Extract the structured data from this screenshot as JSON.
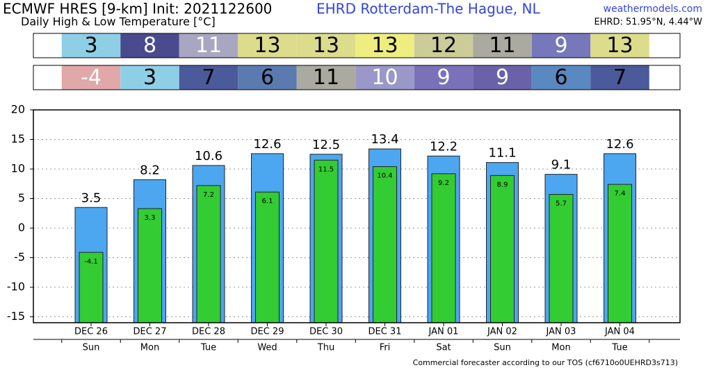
{
  "chart_data": {
    "type": "bar",
    "title": "ECMWF HRES [9-km] Init: 2021122600",
    "location": "EHRD Rotterdam-The Hague,  NL",
    "site": "weathermodels.com",
    "subtitle": "Daily High & Low Temperature [°C]",
    "coords": "EHRD: 51.95°N, 4.44°W",
    "footer": "Commercial forecaster according to our TOS (cf6710o0UEHRD3s713)",
    "categories": [
      "DEC 26",
      "DEC 27",
      "DEC 28",
      "DEC 29",
      "DEC 30",
      "DEC 31",
      "JAN 01",
      "JAN 02",
      "JAN 03",
      "JAN 04"
    ],
    "weekdays": [
      "Sun",
      "Mon",
      "Tue",
      "Wed",
      "Thu",
      "Fri",
      "Sat",
      "Sun",
      "Mon",
      "Tue"
    ],
    "series": [
      {
        "color": "#4da6f0",
        "values": [
          3.5,
          8.2,
          10.6,
          12.6,
          12.5,
          13.4,
          12.2,
          11.1,
          9.1,
          12.6
        ]
      },
      {
        "color": "#33cc33",
        "values": [
          -4.1,
          3.3,
          7.2,
          6.1,
          11.5,
          10.4,
          9.2,
          8.9,
          5.7,
          7.4
        ]
      }
    ],
    "summary_rows": [
      {
        "values": [
          3,
          8,
          11,
          13,
          13,
          13,
          12,
          11,
          9,
          13
        ],
        "colors": [
          "#8ecfe6",
          "#4a4a8f",
          "#a8a6c0",
          "#dcdc8c",
          "#dcdc8c",
          "#eeee80",
          "#cccc99",
          "#aaaaa0",
          "#7777bb",
          "#dcdc8c"
        ],
        "text_colors": [
          "#000",
          "#fff",
          "#fff",
          "#000",
          "#000",
          "#000",
          "#000",
          "#000",
          "#fff",
          "#000"
        ]
      },
      {
        "values": [
          -4,
          3,
          7,
          6,
          11,
          10,
          9,
          9,
          6,
          7
        ],
        "colors": [
          "#e0a8a8",
          "#8ecfe6",
          "#4a5a9a",
          "#5a7ab0",
          "#aaaaa0",
          "#9a98c8",
          "#7a72b8",
          "#6a62a8",
          "#5a88c0",
          "#4a5a9a"
        ],
        "text_colors": [
          "#fff",
          "#000",
          "#000",
          "#000",
          "#000",
          "#fff",
          "#fff",
          "#fff",
          "#000",
          "#000"
        ]
      }
    ],
    "ylim": [
      -16,
      20
    ],
    "yticks": [
      -15,
      -10,
      -5,
      0,
      5,
      10,
      15,
      20
    ],
    "grid": true
  }
}
